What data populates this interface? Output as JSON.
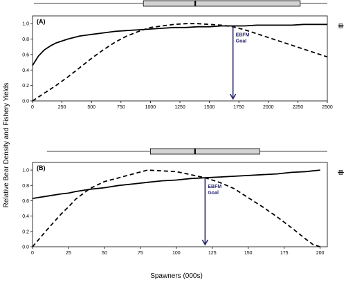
{
  "chart_data": [
    {
      "type": "line",
      "panel_label": "(A)",
      "x": [
        0,
        50,
        100,
        150,
        200,
        300,
        400,
        500,
        600,
        700,
        800,
        900,
        1000,
        1100,
        1200,
        1300,
        1400,
        1500,
        1600,
        1700,
        1800,
        1900,
        2000,
        2100,
        2200,
        2300,
        2400,
        2500
      ],
      "series": [
        {
          "style": "solid",
          "values": [
            0.46,
            0.58,
            0.66,
            0.71,
            0.75,
            0.8,
            0.84,
            0.86,
            0.88,
            0.9,
            0.91,
            0.92,
            0.93,
            0.94,
            0.95,
            0.95,
            0.96,
            0.96,
            0.97,
            0.97,
            0.97,
            0.98,
            0.98,
            0.98,
            0.98,
            0.99,
            0.99,
            0.99
          ]
        },
        {
          "style": "dashed",
          "values": [
            0.0,
            0.05,
            0.1,
            0.15,
            0.2,
            0.31,
            0.43,
            0.55,
            0.66,
            0.76,
            0.84,
            0.9,
            0.95,
            0.97,
            0.99,
            1.0,
            1.0,
            0.99,
            0.98,
            0.96,
            0.92,
            0.87,
            0.82,
            0.77,
            0.72,
            0.67,
            0.62,
            0.57
          ]
        }
      ],
      "xlim": [
        0,
        2500
      ],
      "ylim": [
        0,
        1.1
      ],
      "xticks": [
        0,
        250,
        500,
        750,
        1000,
        1250,
        1500,
        1750,
        2000,
        2250,
        2500
      ],
      "yticks": [
        0.0,
        0.2,
        0.4,
        0.6,
        0.8,
        1.0
      ],
      "ytick_labels": [
        "0.0",
        "0.2",
        "0.4",
        "0.6",
        "0.8",
        "1.0"
      ],
      "goal": {
        "x": 1700,
        "y": 0.97,
        "label_line1": "EBFM",
        "label_line2": "Goal"
      },
      "boxplot": {
        "min": 0,
        "q1": 940,
        "median": 1380,
        "q3": 2270,
        "max": 2500
      },
      "side_marker": {
        "y": 0.97
      }
    },
    {
      "type": "line",
      "panel_label": "(B)",
      "x": [
        0,
        10,
        20,
        25,
        30,
        40,
        50,
        60,
        70,
        80,
        90,
        100,
        105,
        110,
        120,
        130,
        140,
        150,
        160,
        170,
        180,
        190,
        195,
        200
      ],
      "series": [
        {
          "style": "solid",
          "values": [
            0.63,
            0.66,
            0.69,
            0.7,
            0.72,
            0.75,
            0.77,
            0.8,
            0.82,
            0.84,
            0.86,
            0.87,
            0.88,
            0.89,
            0.9,
            0.91,
            0.92,
            0.93,
            0.94,
            0.95,
            0.97,
            0.98,
            0.99,
            1.0
          ]
        },
        {
          "style": "dashed",
          "values": [
            0.0,
            0.22,
            0.43,
            0.52,
            0.62,
            0.76,
            0.85,
            0.9,
            0.95,
            1.0,
            0.99,
            0.98,
            0.96,
            0.94,
            0.9,
            0.84,
            0.76,
            0.64,
            0.52,
            0.39,
            0.25,
            0.1,
            0.03,
            0.0
          ]
        }
      ],
      "xlim": [
        0,
        205
      ],
      "ylim": [
        0,
        1.1
      ],
      "xticks": [
        0,
        25,
        50,
        75,
        100,
        125,
        150,
        175,
        200
      ],
      "yticks": [
        0.0,
        0.2,
        0.4,
        0.6,
        0.8,
        1.0
      ],
      "ytick_labels": [
        "0.0",
        "0.2",
        "0.4",
        "0.6",
        "0.8",
        "1.0"
      ],
      "goal": {
        "x": 120,
        "y": 0.9,
        "label_line1": "EBFM",
        "label_line2": "Goal"
      },
      "boxplot": {
        "min": 10,
        "q1": 82,
        "median": 113,
        "q3": 158,
        "max": 205
      },
      "side_marker": {
        "y": 0.97
      }
    }
  ],
  "ylabel": "Relative Bear Density and Fishery Yields",
  "xlabel": "Spawners (000s)",
  "colors": {
    "line": "#000000",
    "goal_arrow": "#2b2a6e",
    "box_fill": "#d3d3d3"
  }
}
